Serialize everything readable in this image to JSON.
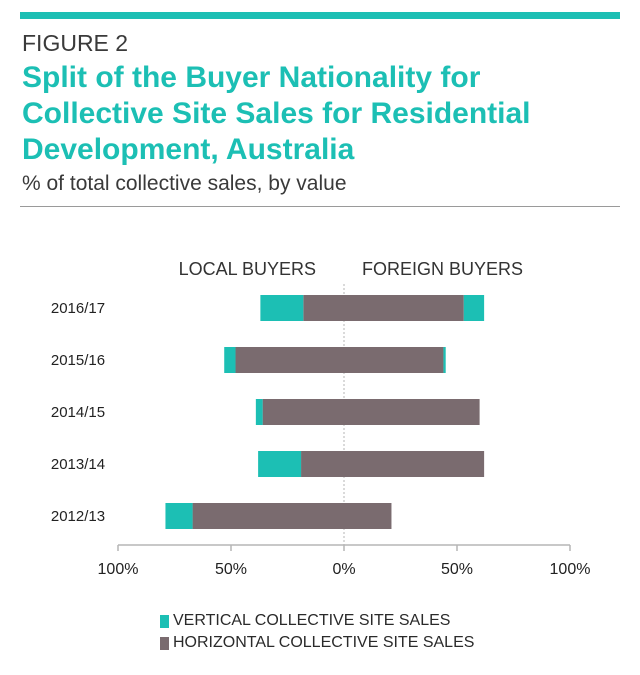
{
  "header": {
    "figure_label": "FIGURE 2",
    "title": "Split of the Buyer Nationality for Collective Site Sales for Residential Development, Australia",
    "subtitle": "% of total collective sales, by value"
  },
  "colors": {
    "accent": "#1cbfb4",
    "vertical": "#1cbfb4",
    "horizontal": "#7a6b6f",
    "axis": "#b5b5b5",
    "text": "#2a2a2a"
  },
  "chart_data": {
    "type": "bar",
    "orientation": "horizontal-diverging",
    "group_labels": {
      "left": "LOCAL BUYERS",
      "right": "FOREIGN BUYERS"
    },
    "categories": [
      "2016/17",
      "2015/16",
      "2014/15",
      "2013/14",
      "2012/13"
    ],
    "xlim": [
      -100,
      100
    ],
    "x_ticks": [
      -100,
      -50,
      0,
      50,
      100
    ],
    "x_tick_labels": [
      "100%",
      "50%",
      "0%",
      "50%",
      "100%"
    ],
    "series": [
      {
        "name": "VERTICAL COLLECTIVE SITE SALES",
        "color_key": "vertical",
        "local": [
          19,
          5,
          3,
          19,
          12
        ],
        "foreign": [
          9,
          1,
          0,
          0,
          0
        ]
      },
      {
        "name": "HORIZONTAL COLLECTIVE SITE SALES",
        "color_key": "horizontal",
        "local": [
          18,
          48,
          36,
          19,
          67
        ],
        "foreign": [
          53,
          44,
          60,
          62,
          21
        ]
      }
    ],
    "legend_position": "bottom"
  }
}
